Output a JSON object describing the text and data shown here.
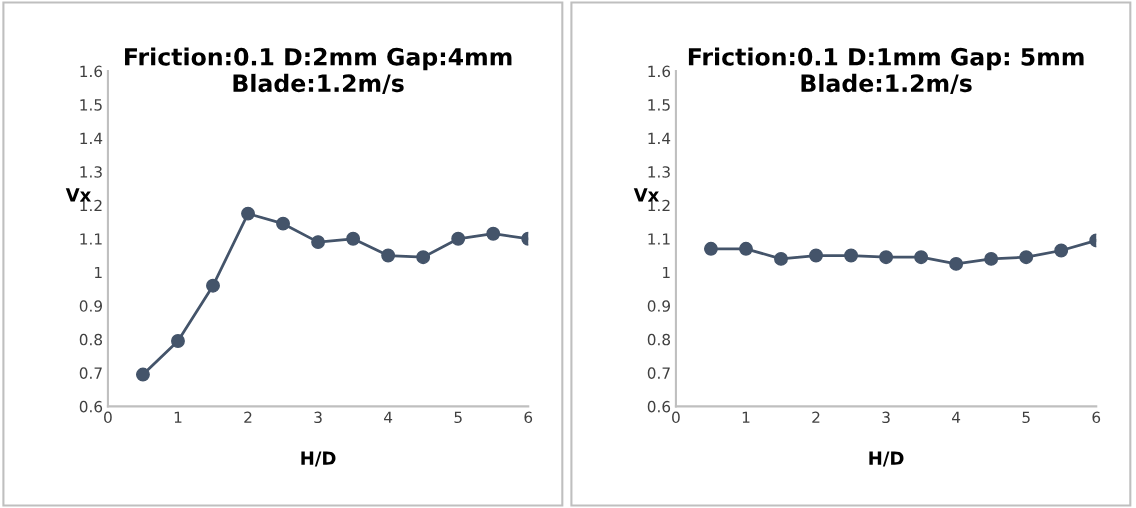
{
  "chart_data": [
    {
      "type": "line",
      "title": "Friction:0.1 D:2mm Gap:4mm\nBlade:1.2m/s",
      "xlabel": "H/D",
      "ylabel": "Vx",
      "x": [
        0.5,
        1,
        1.5,
        2,
        2.5,
        3,
        3.5,
        4,
        4.5,
        5,
        5.5,
        6
      ],
      "series": [
        {
          "color": "#44546a",
          "values": [
            0.695,
            0.795,
            0.96,
            1.175,
            1.145,
            1.09,
            1.1,
            1.05,
            1.045,
            1.1,
            1.115,
            1.1
          ]
        }
      ],
      "xlim": [
        0,
        6
      ],
      "ylim": [
        0.6,
        1.6
      ],
      "xticks": [
        0,
        1,
        2,
        3,
        4,
        5,
        6
      ],
      "yticks": [
        0.6,
        0.7,
        0.8,
        0.9,
        1,
        1.1,
        1.2,
        1.3,
        1.4,
        1.5,
        1.6
      ],
      "marker": "circle",
      "line_style": "solid"
    },
    {
      "type": "line",
      "title": "Friction:0.1 D:1mm Gap: 5mm\nBlade:1.2m/s",
      "xlabel": "H/D",
      "ylabel": "Vx",
      "x": [
        0.5,
        1,
        1.5,
        2,
        2.5,
        3,
        3.5,
        4,
        4.5,
        5,
        5.5,
        6
      ],
      "series": [
        {
          "color": "#44546a",
          "values": [
            1.07,
            1.07,
            1.04,
            1.05,
            1.05,
            1.045,
            1.045,
            1.025,
            1.04,
            1.045,
            1.065,
            1.095
          ]
        }
      ],
      "xlim": [
        0,
        6
      ],
      "ylim": [
        0.6,
        1.6
      ],
      "xticks": [
        0,
        1,
        2,
        3,
        4,
        5,
        6
      ],
      "yticks": [
        0.6,
        0.7,
        0.8,
        0.9,
        1,
        1.1,
        1.2,
        1.3,
        1.4,
        1.5,
        1.6
      ],
      "marker": "circle",
      "line_style": "solid"
    }
  ]
}
